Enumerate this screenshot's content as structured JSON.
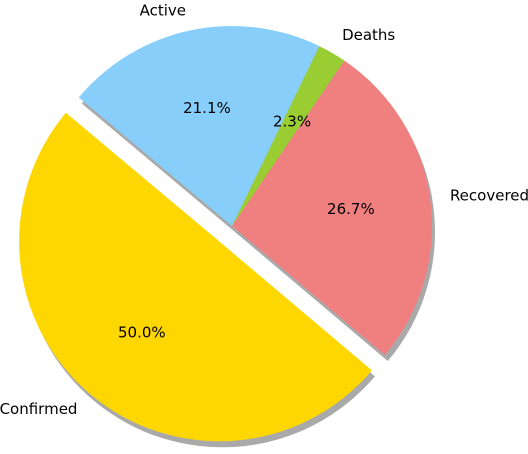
{
  "chart_data": {
    "type": "pie",
    "title": "",
    "categories": [
      "Confirmed",
      "Recovered",
      "Deaths",
      "Active"
    ],
    "values": [
      50.0,
      26.7,
      2.3,
      21.1
    ],
    "percent_labels": [
      "50.0%",
      "26.7%",
      "2.3%",
      "21.1%"
    ],
    "colors": [
      "#ffd700",
      "#f08080",
      "#9acd32",
      "#87cefa"
    ],
    "exploded": [
      "Confirmed"
    ],
    "shadow": true,
    "start_angle_deg": 140,
    "legend": "none"
  }
}
